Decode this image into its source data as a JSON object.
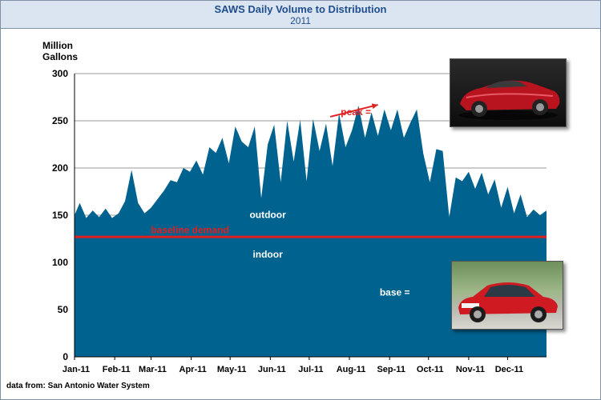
{
  "header": {
    "title": "SAWS Daily Volume to Distribution",
    "subtitle": "2011"
  },
  "source_note": "data from:  San Antonio Water System",
  "colors": {
    "area": "#00628f",
    "baseline": "#e02020",
    "grid": "#9a9a9a",
    "title": "#1f4e8c",
    "header_bg": "#dbe5f1"
  },
  "chart_data": {
    "type": "area",
    "ylabel": "Million\nGallons",
    "ylim": [
      0,
      300
    ],
    "yticks": [
      0,
      50,
      100,
      150,
      200,
      250,
      300
    ],
    "xticks": [
      "Jan-11",
      "Feb-11",
      "Mar-11",
      "Apr-11",
      "May-11",
      "Jun-11",
      "Jul-11",
      "Aug-11",
      "Sep-11",
      "Oct-11",
      "Nov-11",
      "Dec-11"
    ],
    "grid": true,
    "series": [
      {
        "name": "",
        "x_unit": "day of 2011",
        "x": [
          1,
          5,
          10,
          15,
          20,
          25,
          30,
          35,
          40,
          45,
          50,
          55,
          60,
          65,
          70,
          75,
          80,
          85,
          90,
          95,
          100,
          105,
          110,
          115,
          120,
          125,
          130,
          135,
          140,
          145,
          150,
          155,
          160,
          165,
          170,
          175,
          180,
          185,
          190,
          195,
          200,
          205,
          210,
          215,
          220,
          225,
          230,
          235,
          240,
          245,
          250,
          255,
          260,
          265,
          270,
          275,
          280,
          285,
          290,
          295,
          300,
          305,
          310,
          315,
          320,
          325,
          330,
          335,
          340,
          345,
          350,
          355,
          360,
          365
        ],
        "values": [
          150,
          163,
          147,
          155,
          148,
          157,
          147,
          152,
          165,
          198,
          163,
          152,
          158,
          167,
          176,
          187,
          185,
          200,
          196,
          208,
          193,
          222,
          216,
          232,
          205,
          244,
          228,
          222,
          244,
          168,
          225,
          246,
          185,
          250,
          207,
          251,
          186,
          252,
          218,
          247,
          202,
          258,
          222,
          240,
          266,
          232,
          259,
          234,
          262,
          240,
          262,
          232,
          248,
          262,
          215,
          185,
          220,
          218,
          148,
          190,
          186,
          196,
          178,
          195,
          172,
          188,
          158,
          180,
          152,
          172,
          148,
          156,
          150,
          155
        ]
      },
      {
        "name": "",
        "values": [
          127,
          127
        ]
      }
    ],
    "annotations": [
      {
        "text": "outdoor",
        "x": 150,
        "y": 147
      },
      {
        "text": "indoor",
        "x": 150,
        "y": 105
      },
      {
        "text": "baseline demand",
        "x": 90,
        "y": 131,
        "color": "red"
      },
      {
        "text": "peak =",
        "x": 218,
        "y": 256,
        "points_to": {
          "x": 235,
          "y": 267
        },
        "color": "red"
      },
      {
        "text": "base =",
        "x": 248,
        "y": 65
      }
    ]
  },
  "photos": [
    {
      "name": "peak-car-photo",
      "label": "red convertible sports car"
    },
    {
      "name": "base-car-photo",
      "label": "red compact sedan"
    }
  ]
}
